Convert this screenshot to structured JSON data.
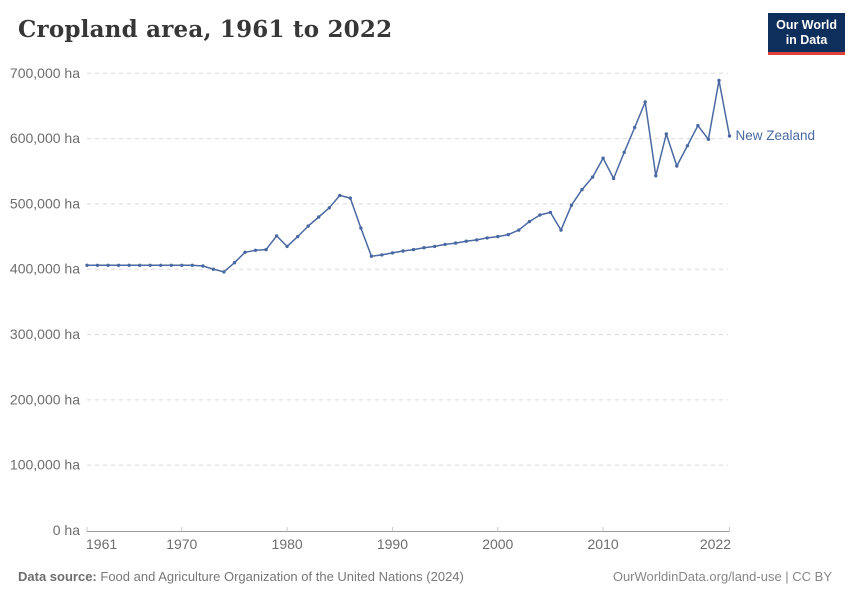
{
  "header": {
    "title": "Cropland area, 1961 to 2022",
    "logo": {
      "line1": "Our World",
      "line2": "in Data",
      "bg_color": "#0e2e5c",
      "accent_color": "#e0403a"
    }
  },
  "chart_data": {
    "type": "line",
    "title": "Cropland area, 1961 to 2022",
    "unit": "ha",
    "xlim": [
      1961,
      2022
    ],
    "ylim": [
      0,
      700000
    ],
    "grid": "horizontal-dashed",
    "legend_position": "line-end-label",
    "xticks": [
      1961,
      1970,
      1980,
      1990,
      2000,
      2010,
      2022
    ],
    "yticks": [
      {
        "value": 0,
        "label": "0 ha"
      },
      {
        "value": 100000,
        "label": "100,000 ha"
      },
      {
        "value": 200000,
        "label": "200,000 ha"
      },
      {
        "value": 300000,
        "label": "300,000 ha"
      },
      {
        "value": 400000,
        "label": "400,000 ha"
      },
      {
        "value": 500000,
        "label": "500,000 ha"
      },
      {
        "value": 600000,
        "label": "600,000 ha"
      },
      {
        "value": 700000,
        "label": "700,000 ha"
      }
    ],
    "series": [
      {
        "name": "New Zealand",
        "color": "#4a69a2",
        "years": [
          1961,
          1962,
          1963,
          1964,
          1965,
          1966,
          1967,
          1968,
          1969,
          1970,
          1971,
          1972,
          1973,
          1974,
          1975,
          1976,
          1977,
          1978,
          1979,
          1980,
          1981,
          1982,
          1983,
          1984,
          1985,
          1986,
          1987,
          1988,
          1989,
          1990,
          1991,
          1992,
          1993,
          1994,
          1995,
          1996,
          1997,
          1998,
          1999,
          2000,
          2001,
          2002,
          2003,
          2004,
          2005,
          2006,
          2007,
          2008,
          2009,
          2010,
          2011,
          2012,
          2013,
          2014,
          2015,
          2016,
          2017,
          2018,
          2019,
          2020,
          2021,
          2022
        ],
        "values": [
          406000,
          406000,
          406000,
          406000,
          406000,
          406000,
          406000,
          406000,
          406000,
          406000,
          406000,
          405000,
          400000,
          396000,
          410000,
          426000,
          429000,
          430000,
          451000,
          435000,
          450000,
          466000,
          480000,
          494000,
          513000,
          509000,
          463000,
          420000,
          422000,
          425000,
          428000,
          430000,
          433000,
          435000,
          438000,
          440000,
          443000,
          445000,
          448000,
          450000,
          453000,
          460000,
          473000,
          483000,
          487000,
          460000,
          498000,
          522000,
          541000,
          570000,
          539000,
          579000,
          617000,
          656000,
          543000,
          607000,
          558000,
          589000,
          620000,
          599000,
          689000,
          604000
        ]
      }
    ]
  },
  "footer": {
    "source_label": "Data source:",
    "source_text": "Food and Agriculture Organization of the United Nations (2024)",
    "credit": "OurWorldinData.org/land-use | CC BY"
  }
}
